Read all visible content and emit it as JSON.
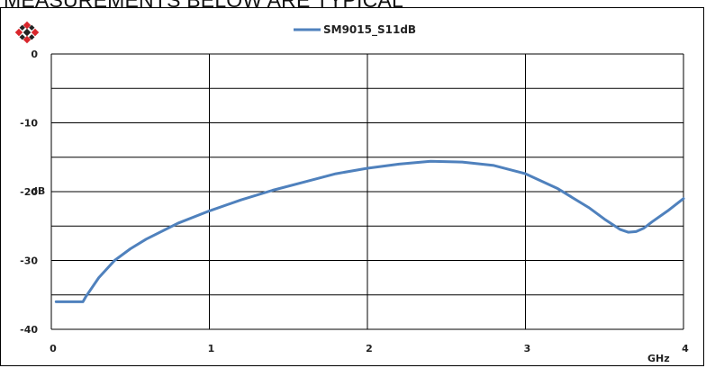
{
  "heading": "MEASUREMENTS BELOW ARE TYPICAL",
  "colors": {
    "series": "#4f81bd",
    "grid": "#000000",
    "logo_red": "#d9262c",
    "logo_dark": "#222222"
  },
  "logo": {
    "icon": "diamond-logo-icon"
  },
  "chart_data": {
    "type": "line",
    "xlabel": "GHz",
    "ylabel": "dB",
    "xlim": [
      0,
      4
    ],
    "ylim": [
      -40,
      0
    ],
    "xticks": [
      "0",
      "1",
      "2",
      "3",
      "4"
    ],
    "yticks": [
      "0",
      "-10",
      "-20",
      "-30",
      "-40"
    ],
    "grid": true,
    "legend": "top-center",
    "series": [
      {
        "name": "SM9015_S11dB",
        "x": [
          0.03,
          0.1,
          0.2,
          0.22,
          0.3,
          0.4,
          0.5,
          0.6,
          0.8,
          1.0,
          1.2,
          1.4,
          1.6,
          1.8,
          2.0,
          2.2,
          2.4,
          2.6,
          2.8,
          3.0,
          3.2,
          3.4,
          3.5,
          3.6,
          3.65,
          3.7,
          3.75,
          3.8,
          3.9,
          4.0
        ],
        "y": [
          -36.0,
          -36.0,
          -36.0,
          -35.2,
          -32.5,
          -30.0,
          -28.3,
          -26.9,
          -24.6,
          -22.8,
          -21.2,
          -19.8,
          -18.6,
          -17.4,
          -16.6,
          -16.0,
          -15.6,
          -15.7,
          -16.2,
          -17.4,
          -19.5,
          -22.3,
          -24.0,
          -25.5,
          -25.9,
          -25.8,
          -25.3,
          -24.4,
          -22.8,
          -21.0
        ]
      }
    ]
  }
}
